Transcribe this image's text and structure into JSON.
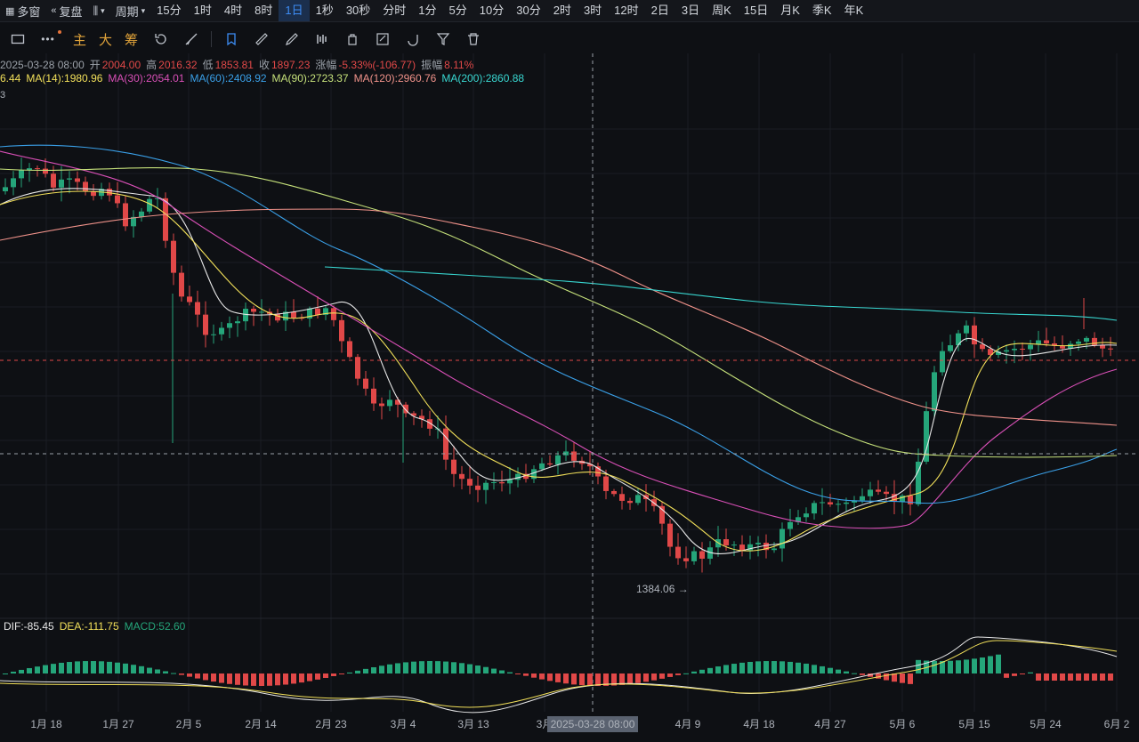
{
  "toolbar": {
    "layout_label": "多窗",
    "adjust_label": "复盘",
    "period_label": "周期",
    "intervals": [
      "15分",
      "1时",
      "4时",
      "8时",
      "1日",
      "1秒",
      "30秒",
      "分时",
      "1分",
      "5分",
      "10分",
      "30分",
      "2时",
      "3时",
      "12时",
      "2日",
      "3日",
      "周K",
      "15日",
      "月K",
      "季K",
      "年K"
    ],
    "active_interval": "1日"
  },
  "drawing_toolbar": {
    "indicator_buttons": [
      "主",
      "大",
      "筹"
    ],
    "icons": [
      "rectangle-icon",
      "more-icon",
      "undo-icon",
      "clear-icon",
      "pin-icon",
      "ruler-icon",
      "brush-icon",
      "compare-icon",
      "lock-icon",
      "template-icon",
      "magnet-icon",
      "filter-icon",
      "trash-icon"
    ]
  },
  "ohlc": {
    "date": "2025-03-28 08:00",
    "open_label": "开",
    "open": "2004.00",
    "high_label": "高",
    "high": "2016.32",
    "low_label": "低",
    "low": "1853.81",
    "close_label": "收",
    "close": "1897.23",
    "change_label": "涨幅",
    "change": "-5.33%(-106.77)",
    "amplitude_label": "振幅",
    "amplitude": "8.11%"
  },
  "ma": {
    "prefix": "6.44",
    "items": [
      {
        "label": "MA(14):1980.96",
        "color": "#f2e05a"
      },
      {
        "label": "MA(30):2054.01",
        "color": "#d84fb6"
      },
      {
        "label": "MA(60):2408.92",
        "color": "#3aa0e8"
      },
      {
        "label": "MA(90):2723.37",
        "color": "#c5e07a"
      },
      {
        "label": "MA(120):2960.76",
        "color": "#f0928a"
      },
      {
        "label": "MA(200):2860.88",
        "color": "#38d6d0"
      }
    ],
    "second_line": "3"
  },
  "macd": {
    "dif": "DIF:-85.45",
    "dea": "DEA:-111.75",
    "macd": "MACD:52.60"
  },
  "crosshair": {
    "date_label": "2025-03-28 08:00"
  },
  "low_marker": "1384.06 →",
  "colors": {
    "up": "#25a57a",
    "down": "#e04848",
    "bg": "#0e1014"
  },
  "chart_data": {
    "type": "candlestick",
    "x_labels": [
      "1月 18",
      "1月 27",
      "2月 5",
      "2月 14",
      "2月 23",
      "3月 4",
      "3月 13",
      "3月",
      "4月 9",
      "4月 18",
      "4月 27",
      "5月 6",
      "5月 15",
      "5月 24",
      "6月 2"
    ],
    "series": [
      {
        "name": "MA(14)",
        "color": "#f2e05a"
      },
      {
        "name": "MA(30)",
        "color": "#d84fb6"
      },
      {
        "name": "MA(60)",
        "color": "#3aa0e8"
      },
      {
        "name": "MA(90)",
        "color": "#c5e07a"
      },
      {
        "name": "MA(120)",
        "color": "#f0928a"
      },
      {
        "name": "MA(200)",
        "color": "#38d6d0"
      }
    ],
    "annotations": [
      "1384.06"
    ]
  }
}
